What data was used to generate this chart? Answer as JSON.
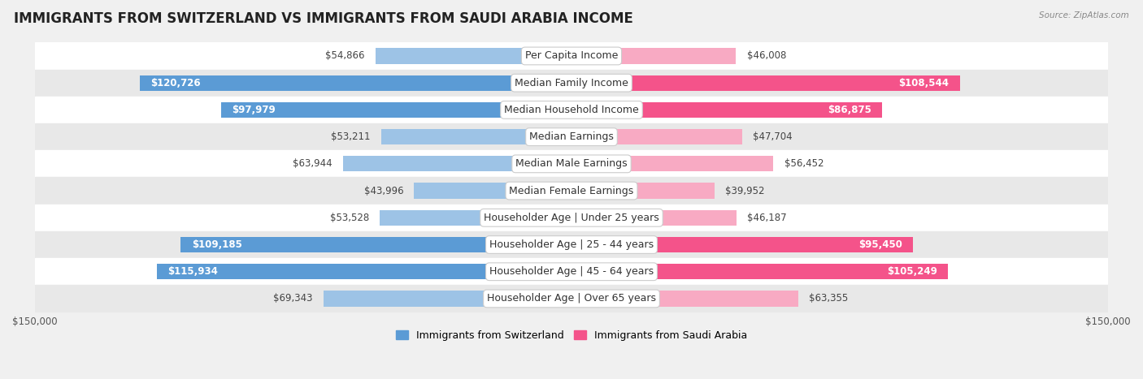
{
  "title": "IMMIGRANTS FROM SWITZERLAND VS IMMIGRANTS FROM SAUDI ARABIA INCOME",
  "source": "Source: ZipAtlas.com",
  "categories": [
    "Per Capita Income",
    "Median Family Income",
    "Median Household Income",
    "Median Earnings",
    "Median Male Earnings",
    "Median Female Earnings",
    "Householder Age | Under 25 years",
    "Householder Age | 25 - 44 years",
    "Householder Age | 45 - 64 years",
    "Householder Age | Over 65 years"
  ],
  "switzerland_values": [
    54866,
    120726,
    97979,
    53211,
    63944,
    43996,
    53528,
    109185,
    115934,
    69343
  ],
  "saudi_values": [
    46008,
    108544,
    86875,
    47704,
    56452,
    39952,
    46187,
    95450,
    105249,
    63355
  ],
  "switzerland_labels": [
    "$54,866",
    "$120,726",
    "$97,979",
    "$53,211",
    "$63,944",
    "$43,996",
    "$53,528",
    "$109,185",
    "$115,934",
    "$69,343"
  ],
  "saudi_labels": [
    "$46,008",
    "$108,544",
    "$86,875",
    "$47,704",
    "$56,452",
    "$39,952",
    "$46,187",
    "$95,450",
    "$105,249",
    "$63,355"
  ],
  "switzerland_color_dark": "#5b9bd5",
  "switzerland_color_light": "#9dc3e6",
  "saudi_color_dark": "#f4538a",
  "saudi_color_light": "#f8aac3",
  "label_color_inside": "#ffffff",
  "label_color_outside": "#444444",
  "background_color": "#f0f0f0",
  "row_bg_light": "#ffffff",
  "row_bg_dark": "#e8e8e8",
  "axis_limit": 150000,
  "bar_height": 0.58,
  "inside_threshold": 70000,
  "legend_switzerland": "Immigrants from Switzerland",
  "legend_saudi": "Immigrants from Saudi Arabia",
  "title_fontsize": 12,
  "label_fontsize": 8.5,
  "axis_label_fontsize": 8.5,
  "legend_fontsize": 9
}
